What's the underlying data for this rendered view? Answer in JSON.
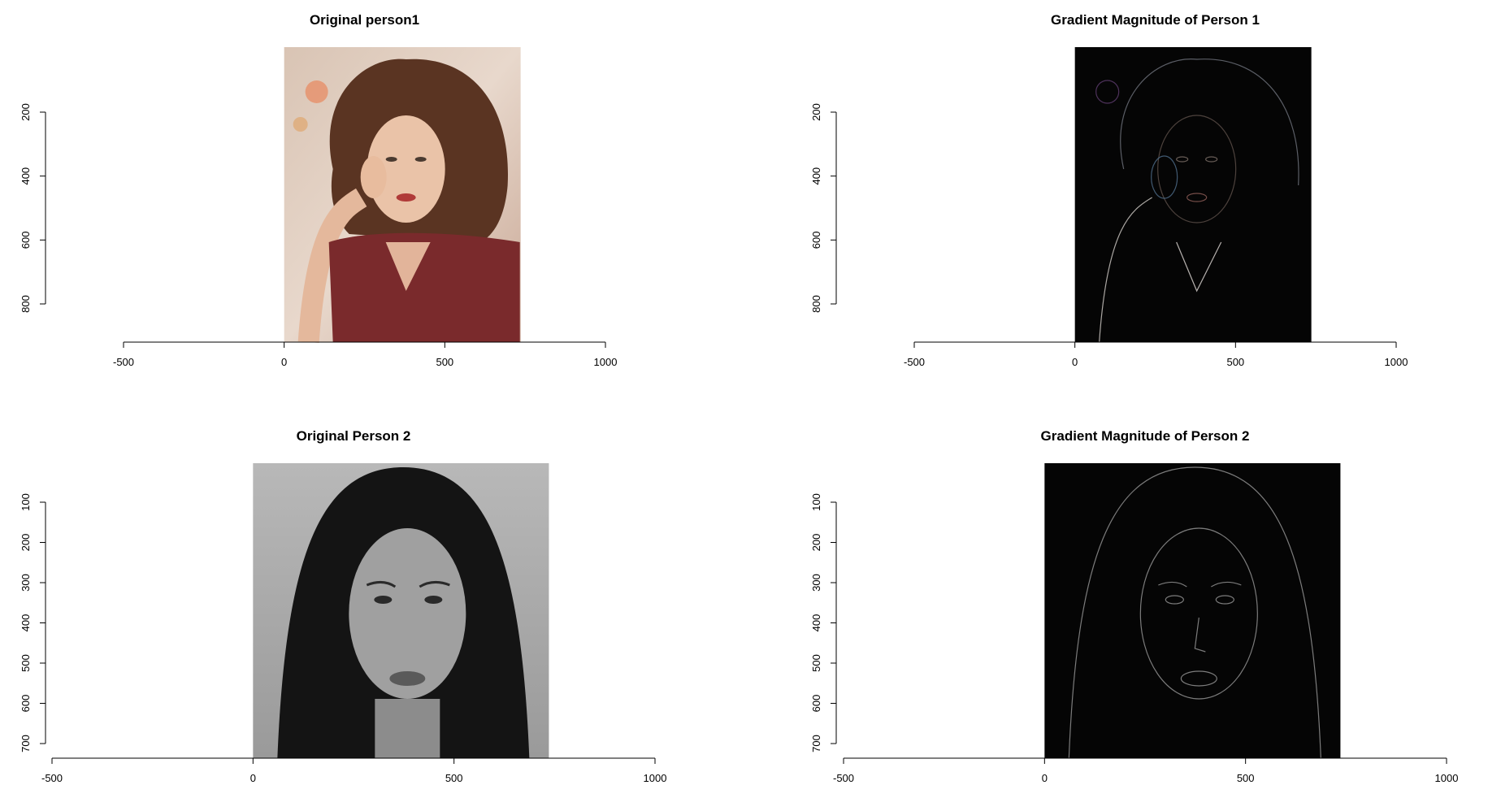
{
  "chart_data": [
    {
      "type": "image",
      "title": "Original person1",
      "image_kind": "color photo",
      "xlim": [
        -500,
        1000
      ],
      "x_ticks": [
        -500,
        0,
        500,
        1000
      ],
      "y_ticks": [
        200,
        400,
        600,
        800
      ],
      "y_reversed": true,
      "image_extent": {
        "x": [
          0,
          736
        ],
        "y": [
          0,
          920
        ]
      }
    },
    {
      "type": "image",
      "title": "Gradient Magnitude of Person 1",
      "image_kind": "edge map",
      "xlim": [
        -500,
        1000
      ],
      "x_ticks": [
        -500,
        0,
        500,
        1000
      ],
      "y_ticks": [
        200,
        400,
        600,
        800
      ],
      "y_reversed": true,
      "image_extent": {
        "x": [
          0,
          736
        ],
        "y": [
          0,
          920
        ]
      }
    },
    {
      "type": "image",
      "title": "Original Person 2",
      "image_kind": "grayscale photo",
      "xlim": [
        -500,
        1000
      ],
      "x_ticks": [
        -500,
        0,
        500,
        1000
      ],
      "y_ticks": [
        100,
        200,
        300,
        400,
        500,
        600,
        700
      ],
      "y_reversed": true,
      "image_extent": {
        "x": [
          0,
          736
        ],
        "y": [
          0,
          736
        ]
      }
    },
    {
      "type": "image",
      "title": "Gradient Magnitude of Person 2",
      "image_kind": "edge map",
      "xlim": [
        -500,
        1000
      ],
      "x_ticks": [
        -500,
        0,
        500,
        1000
      ],
      "y_ticks": [
        100,
        200,
        300,
        400,
        500,
        600,
        700
      ],
      "y_reversed": true,
      "image_extent": {
        "x": [
          0,
          736
        ],
        "y": [
          0,
          736
        ]
      }
    }
  ]
}
